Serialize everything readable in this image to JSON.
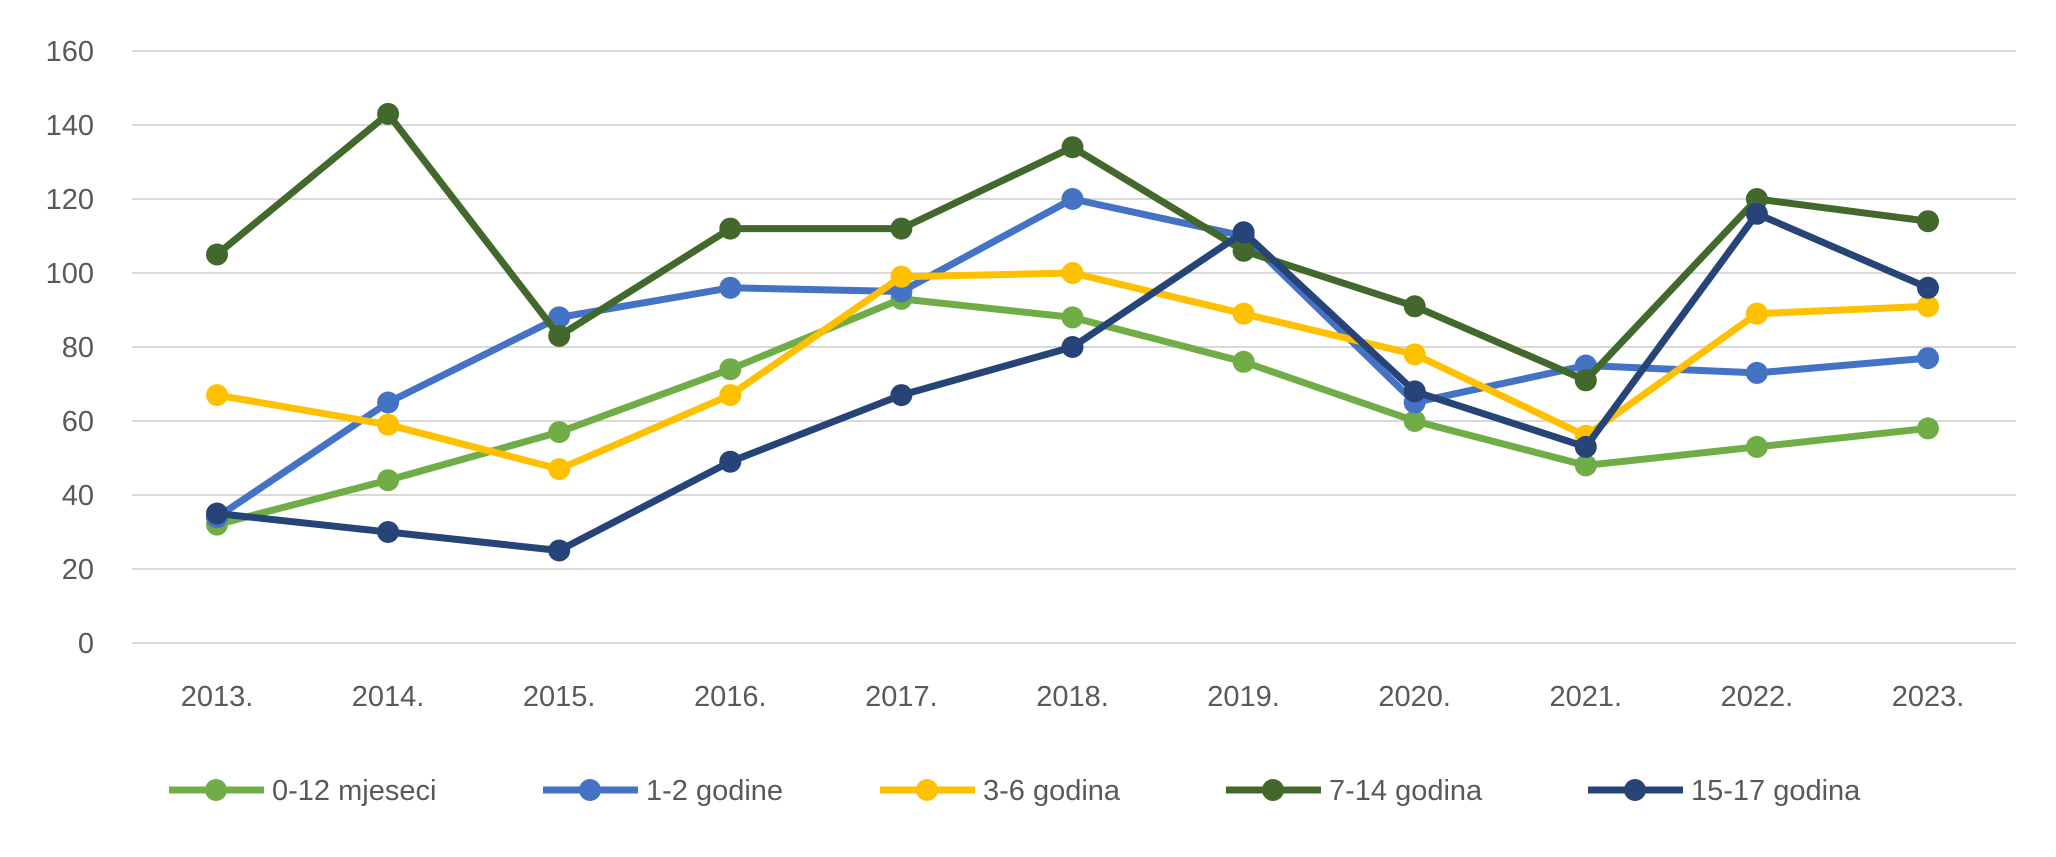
{
  "chart_data": {
    "type": "line",
    "title": "",
    "xlabel": "",
    "ylabel": "",
    "ylim": [
      0,
      160
    ],
    "yticks": [
      0,
      20,
      40,
      60,
      80,
      100,
      120,
      140,
      160
    ],
    "grid": true,
    "legend_position": "bottom",
    "categories": [
      "2013.",
      "2014.",
      "2015.",
      "2016.",
      "2017.",
      "2018.",
      "2019.",
      "2020.",
      "2021.",
      "2022.",
      "2023."
    ],
    "series": [
      {
        "name": "0-12 mjeseci",
        "color": "#70AD47",
        "values": [
          32,
          44,
          57,
          74,
          93,
          88,
          76,
          60,
          48,
          53,
          58
        ]
      },
      {
        "name": "1-2 godine",
        "color": "#4472C4",
        "values": [
          34,
          65,
          88,
          96,
          95,
          120,
          110,
          65,
          75,
          73,
          77
        ]
      },
      {
        "name": "3-6 godina",
        "color": "#FFC000",
        "values": [
          67,
          59,
          47,
          67,
          99,
          100,
          89,
          78,
          56,
          89,
          91
        ]
      },
      {
        "name": "7-14 godina",
        "color": "#43682B",
        "values": [
          105,
          143,
          83,
          112,
          112,
          134,
          106,
          91,
          71,
          120,
          114
        ]
      },
      {
        "name": "15-17 godina",
        "color": "#264478",
        "values": [
          35,
          30,
          25,
          49,
          67,
          80,
          111,
          68,
          53,
          116,
          96
        ]
      }
    ]
  }
}
